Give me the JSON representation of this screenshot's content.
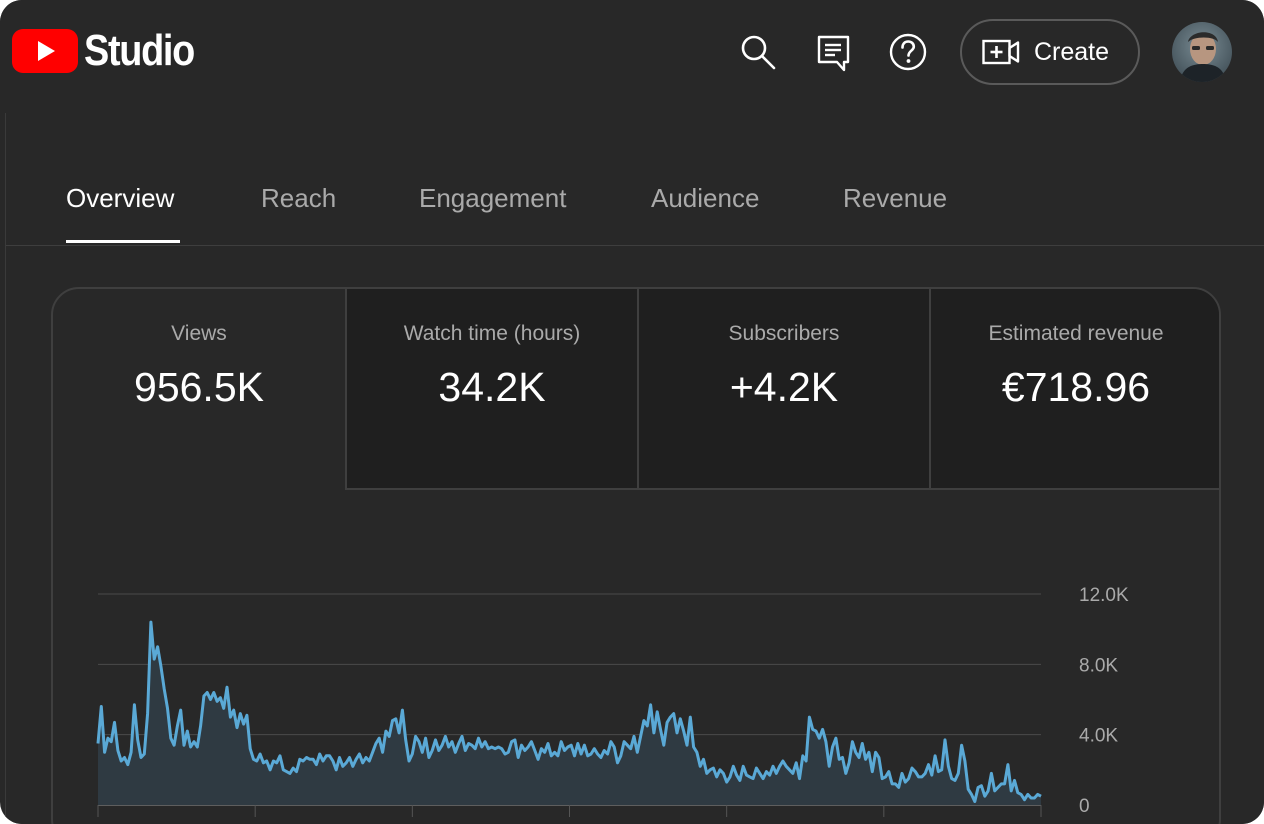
{
  "header": {
    "app_name": "Studio",
    "create_label": "Create",
    "icons": [
      "search-icon",
      "feedback-icon",
      "help-icon",
      "create-video-icon"
    ],
    "brand_color": "#ff0000"
  },
  "tabs": [
    {
      "label": "Overview",
      "active": true
    },
    {
      "label": "Reach",
      "active": false
    },
    {
      "label": "Engagement",
      "active": false
    },
    {
      "label": "Audience",
      "active": false
    },
    {
      "label": "Revenue",
      "active": false
    }
  ],
  "metrics": [
    {
      "label": "Views",
      "value": "956.5K",
      "selected": true
    },
    {
      "label": "Watch time (hours)",
      "value": "34.2K",
      "selected": false
    },
    {
      "label": "Subscribers",
      "value": "+4.2K",
      "selected": false
    },
    {
      "label": "Estimated revenue",
      "value": "€718.96",
      "selected": false
    }
  ],
  "chart_data": {
    "type": "area",
    "series_color": "#5aa9d6",
    "y_ticks": [
      "12.0K",
      "8.0K",
      "4.0K",
      "0"
    ],
    "ylim": [
      0,
      12000
    ],
    "grid": true,
    "values": [
      3500,
      5600,
      3000,
      3800,
      3600,
      4700,
      3100,
      2500,
      2700,
      2300,
      3000,
      5700,
      3700,
      2700,
      2900,
      5200,
      10400,
      8300,
      9000,
      7900,
      6600,
      5500,
      3800,
      3400,
      4500,
      5400,
      3400,
      4200,
      3300,
      3600,
      3300,
      4500,
      6200,
      6400,
      6000,
      6400,
      5900,
      6100,
      5500,
      6700,
      5000,
      5400,
      4400,
      5200,
      4600,
      5100,
      3200,
      2600,
      2500,
      2900,
      2400,
      2500,
      2000,
      2500,
      2400,
      2800,
      2000,
      1900,
      1800,
      2100,
      1900,
      2600,
      2500,
      2700,
      2600,
      2600,
      2300,
      2900,
      2500,
      2800,
      2800,
      2500,
      2000,
      2700,
      2200,
      2400,
      2700,
      2200,
      2600,
      2900,
      2400,
      2700,
      2500,
      3000,
      3500,
      3800,
      3000,
      4200,
      3900,
      4800,
      4900,
      4100,
      5400,
      3700,
      2500,
      2900,
      3900,
      3600,
      3000,
      3800,
      2700,
      3100,
      3700,
      3100,
      3400,
      3900,
      3300,
      3600,
      3000,
      3500,
      3900,
      3100,
      3500,
      3400,
      3200,
      3800,
      3300,
      3600,
      3200,
      3300,
      3200,
      3300,
      3200,
      2900,
      3000,
      3600,
      3700,
      2700,
      3400,
      3100,
      3300,
      3600,
      3100,
      2600,
      3200,
      3000,
      3500,
      2800,
      3000,
      2800,
      3600,
      3100,
      3300,
      3400,
      2800,
      3500,
      2900,
      3400,
      2800,
      2900,
      3200,
      2900,
      2700,
      3100,
      2900,
      3600,
      3300,
      2400,
      2800,
      3600,
      3400,
      3200,
      3900,
      3000,
      3900,
      4800,
      4500,
      5700,
      4100,
      5300,
      4300,
      3400,
      4700,
      5000,
      5200,
      4100,
      4900,
      4200,
      3400,
      5000,
      3300,
      3000,
      2200,
      2600,
      1800,
      2000,
      2100,
      1600,
      2000,
      1800,
      1300,
      1600,
      2200,
      1700,
      1400,
      2200,
      1700,
      1600,
      1500,
      2100,
      1800,
      1500,
      1900,
      1700,
      2200,
      1800,
      2200,
      2500,
      2200,
      2000,
      1800,
      2400,
      1500,
      2800,
      2500,
      5000,
      4300,
      4200,
      3800,
      4300,
      3600,
      2200,
      3300,
      3800,
      2600,
      2700,
      1800,
      2400,
      3600,
      3000,
      2700,
      3500,
      2600,
      3000,
      1900,
      3000,
      2700,
      1500,
      1600,
      1900,
      1200,
      1200,
      1000,
      1800,
      1300,
      1500,
      2100,
      1900,
      1600,
      1600,
      1800,
      2300,
      1700,
      2800,
      1900,
      2000,
      3700,
      2200,
      1500,
      1400,
      1800,
      3400,
      2500,
      900,
      600,
      200,
      1000,
      1100,
      500,
      800,
      1800,
      800,
      1000,
      1200,
      1200,
      2300,
      800,
      1400,
      700,
      600,
      300,
      600,
      400,
      400,
      600,
      500
    ]
  }
}
